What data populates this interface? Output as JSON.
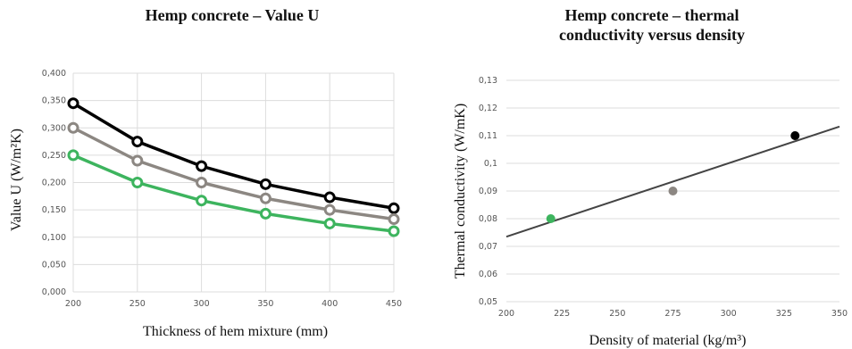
{
  "chart_data": [
    {
      "type": "line",
      "title": "Hemp concrete – Value U",
      "xlabel": "Thickness of hem mixture (mm)",
      "ylabel": "Value U (W/m²K)",
      "x": [
        200,
        250,
        300,
        350,
        400,
        450
      ],
      "xlim": [
        200,
        450
      ],
      "xticks": [
        "200",
        "250",
        "300",
        "350",
        "400",
        "450"
      ],
      "ylim": [
        0,
        0.4
      ],
      "yticks": [
        "0,000",
        "0,050",
        "0,100",
        "0,150",
        "0,200",
        "0,250",
        "0,300",
        "0,350",
        "0,400"
      ],
      "grid": true,
      "series": [
        {
          "color": "#000000",
          "values": [
            0.345,
            0.275,
            0.23,
            0.197,
            0.173,
            0.153
          ]
        },
        {
          "color": "#8c8782",
          "values": [
            0.3,
            0.24,
            0.2,
            0.171,
            0.15,
            0.133
          ]
        },
        {
          "color": "#3db45e",
          "values": [
            0.25,
            0.2,
            0.167,
            0.143,
            0.125,
            0.111
          ]
        }
      ]
    },
    {
      "type": "scatter",
      "title": "Hemp concrete – thermal conductivity versus density",
      "xlabel": "Density of material (kg/m³)",
      "ylabel": "Thermal conductivity (W/mK)",
      "xlim": [
        200,
        350
      ],
      "xticks": [
        "200",
        "225",
        "250",
        "275",
        "300",
        "325",
        "350"
      ],
      "ylim": [
        0.05,
        0.13
      ],
      "yticks": [
        "0,05",
        "0,06",
        "0,07",
        "0,08",
        "0,09",
        "0,1",
        "0,11",
        "0,12",
        "0,13"
      ],
      "grid": true,
      "points": [
        {
          "x": 220,
          "y": 0.08,
          "color": "#3db45e"
        },
        {
          "x": 275,
          "y": 0.09,
          "color": "#8c8782"
        },
        {
          "x": 330,
          "y": 0.11,
          "color": "#000000"
        }
      ],
      "trendline": {
        "x": [
          200,
          350
        ],
        "y": [
          0.0735,
          0.1133
        ],
        "color": "#444444"
      }
    }
  ]
}
